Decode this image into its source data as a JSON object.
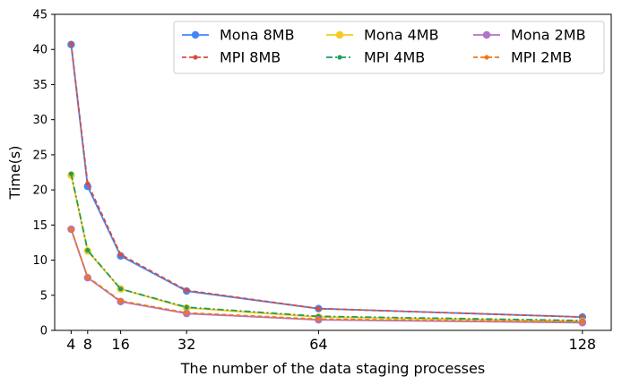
{
  "chart_data": {
    "type": "line",
    "xlabel": "The number of the data staging processes",
    "ylabel": "Time(s)",
    "xlim": [
      0,
      135
    ],
    "ylim": [
      0,
      45
    ],
    "x_ticks": [
      4,
      8,
      16,
      32,
      64,
      128
    ],
    "y_ticks": [
      0,
      5,
      10,
      15,
      20,
      25,
      30,
      35,
      40,
      45
    ],
    "grid": false,
    "legend_position": "top-right",
    "x": [
      4,
      8,
      16,
      32,
      64,
      128
    ],
    "series": [
      {
        "name": "Mona 8MB",
        "color": "#4286f4",
        "style": "solid",
        "marker": "circle",
        "values": [
          40.7,
          20.5,
          10.6,
          5.6,
          3.1,
          1.9
        ]
      },
      {
        "name": "MPI 8MB",
        "color": "#dd4b39",
        "style": "dashed",
        "marker": "dot",
        "values": [
          40.8,
          20.9,
          10.8,
          5.7,
          3.1,
          1.9
        ]
      },
      {
        "name": "Mona 4MB",
        "color": "#f7c920",
        "style": "solid",
        "marker": "circle",
        "values": [
          22.1,
          11.3,
          5.9,
          3.2,
          1.9,
          1.3
        ]
      },
      {
        "name": "MPI 4MB",
        "color": "#1f9e5a",
        "style": "dashdot",
        "marker": "dot",
        "values": [
          22.3,
          11.4,
          5.9,
          3.3,
          2.0,
          1.4
        ]
      },
      {
        "name": "Mona 2MB",
        "color": "#b072c9",
        "style": "solid",
        "marker": "circle",
        "values": [
          14.4,
          7.5,
          4.1,
          2.4,
          1.5,
          1.1
        ]
      },
      {
        "name": "MPI 2MB",
        "color": "#f07818",
        "style": "dashed",
        "marker": "dot",
        "values": [
          14.4,
          7.6,
          4.2,
          2.5,
          1.6,
          1.2
        ]
      }
    ]
  }
}
